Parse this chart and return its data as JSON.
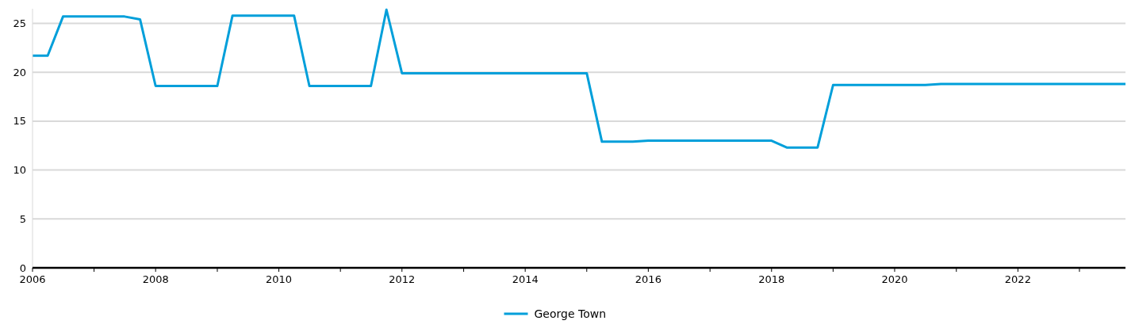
{
  "chart_data": {
    "type": "line",
    "x": [
      "2006-01",
      "2006-04",
      "2006-07",
      "2006-10",
      "2007-01",
      "2007-04",
      "2007-07",
      "2007-10",
      "2008-01",
      "2008-04",
      "2008-07",
      "2008-10",
      "2009-01",
      "2009-04",
      "2009-07",
      "2009-10",
      "2010-01",
      "2010-04",
      "2010-07",
      "2010-10",
      "2011-01",
      "2011-04",
      "2011-07",
      "2011-10",
      "2012-01",
      "2012-04",
      "2012-07",
      "2012-10",
      "2013-01",
      "2013-04",
      "2013-07",
      "2013-10",
      "2014-01",
      "2014-04",
      "2014-07",
      "2014-10",
      "2015-01",
      "2015-04",
      "2015-07",
      "2015-10",
      "2016-01",
      "2016-04",
      "2016-07",
      "2016-10",
      "2017-01",
      "2017-04",
      "2017-07",
      "2017-10",
      "2018-01",
      "2018-04",
      "2018-07",
      "2018-10",
      "2019-01",
      "2019-04",
      "2019-07",
      "2019-10",
      "2020-01",
      "2020-04",
      "2020-07",
      "2020-10",
      "2021-01",
      "2021-04",
      "2021-07",
      "2021-10",
      "2022-01",
      "2022-04",
      "2022-07",
      "2022-10",
      "2023-01",
      "2023-04",
      "2023-07",
      "2023-10"
    ],
    "series": [
      {
        "name": "George Town",
        "color": "#009fda",
        "values": [
          21.7,
          21.7,
          25.7,
          25.7,
          25.7,
          25.7,
          25.7,
          25.4,
          18.6,
          18.6,
          18.6,
          18.6,
          18.6,
          25.8,
          25.8,
          25.8,
          25.8,
          25.8,
          18.6,
          18.6,
          18.6,
          18.6,
          18.6,
          26.4,
          19.9,
          19.9,
          19.9,
          19.9,
          19.9,
          19.9,
          19.9,
          19.9,
          19.9,
          19.9,
          19.9,
          19.9,
          19.9,
          12.9,
          12.9,
          12.9,
          13.0,
          13.0,
          13.0,
          13.0,
          13.0,
          13.0,
          13.0,
          13.0,
          13.0,
          12.3,
          12.3,
          12.3,
          18.7,
          18.7,
          18.7,
          18.7,
          18.7,
          18.7,
          18.7,
          18.8,
          18.8,
          18.8,
          18.8,
          18.8,
          18.8,
          18.8,
          18.8,
          18.8,
          18.8,
          18.8,
          18.8,
          18.8
        ]
      }
    ],
    "xlim": [
      "2006-01",
      "2023-10"
    ],
    "xticks": [
      "2006",
      {
        "value": "2007",
        "label": null
      },
      "2008",
      {
        "value": "2009",
        "label": null
      },
      "2010",
      {
        "value": "2011",
        "label": null
      },
      "2012",
      {
        "value": "2013",
        "label": null
      },
      "2014",
      {
        "value": "2015",
        "label": null
      },
      "2016",
      {
        "value": "2017",
        "label": null
      },
      "2018",
      {
        "value": "2019",
        "label": null
      },
      "2020",
      {
        "value": "2021",
        "label": null
      },
      "2022",
      {
        "value": "2023",
        "label": null
      }
    ],
    "ylim": [
      0,
      26.5
    ],
    "yticks": [
      0,
      5,
      10,
      15,
      20,
      25
    ],
    "grid": "y",
    "legend": "bottom",
    "marker": "none",
    "line_style": "solid"
  }
}
